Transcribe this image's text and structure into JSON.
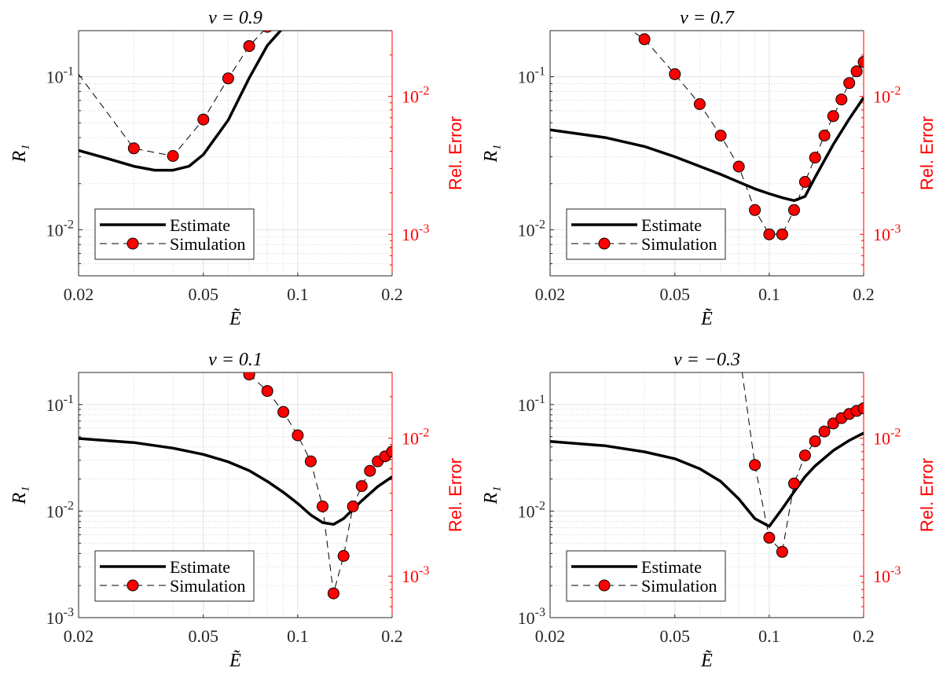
{
  "chart_data": [
    {
      "type": "line",
      "title": "ν = 0.9",
      "xlabel": "Ẽ",
      "ylabel": "R₁",
      "y2label": "Rel. Error",
      "xscale": "log",
      "yscale": "log",
      "y2scale": "log",
      "xlim": [
        0.02,
        0.2
      ],
      "ylim": [
        0.005,
        0.2
      ],
      "y2lim": [
        0.0005,
        0.03
      ],
      "xticks": [
        "0.02",
        "0.05",
        "0.1",
        "0.2"
      ],
      "yticks": [
        {
          "base": "10",
          "exp": "-2"
        },
        {
          "base": "10",
          "exp": "-1"
        }
      ],
      "y2ticks": [
        {
          "base": "10",
          "exp": "-3"
        },
        {
          "base": "10",
          "exp": "-2"
        }
      ],
      "grid": true,
      "legend": {
        "position": "bottom-left",
        "entries": [
          "Estimate",
          "Simulation"
        ]
      },
      "series": [
        {
          "name": "Estimate",
          "axis": "left",
          "x": [
            0.02,
            0.025,
            0.03,
            0.035,
            0.04,
            0.045,
            0.05,
            0.06,
            0.07,
            0.08,
            0.09
          ],
          "y": [
            0.033,
            0.029,
            0.026,
            0.0245,
            0.0245,
            0.026,
            0.031,
            0.052,
            0.098,
            0.16,
            0.21
          ]
        },
        {
          "name": "Simulation",
          "axis": "right",
          "x": [
            0.02,
            0.03,
            0.04,
            0.05,
            0.06,
            0.07,
            0.08
          ],
          "y": [
            0.0145,
            0.0042,
            0.0037,
            0.0068,
            0.0135,
            0.0232,
            0.032
          ]
        }
      ]
    },
    {
      "type": "line",
      "title": "ν = 0.7",
      "xlabel": "Ẽ",
      "ylabel": "R₁",
      "y2label": "Rel. Error",
      "xscale": "log",
      "yscale": "log",
      "y2scale": "log",
      "xlim": [
        0.02,
        0.2
      ],
      "ylim": [
        0.005,
        0.2
      ],
      "y2lim": [
        0.0005,
        0.03
      ],
      "xticks": [
        "0.02",
        "0.05",
        "0.1",
        "0.2"
      ],
      "yticks": [
        {
          "base": "10",
          "exp": "-2"
        },
        {
          "base": "10",
          "exp": "-1"
        }
      ],
      "y2ticks": [
        {
          "base": "10",
          "exp": "-3"
        },
        {
          "base": "10",
          "exp": "-2"
        }
      ],
      "grid": true,
      "legend": {
        "position": "bottom-left",
        "entries": [
          "Estimate",
          "Simulation"
        ]
      },
      "series": [
        {
          "name": "Estimate",
          "axis": "left",
          "x": [
            0.02,
            0.03,
            0.04,
            0.05,
            0.06,
            0.07,
            0.08,
            0.09,
            0.1,
            0.11,
            0.12,
            0.13,
            0.14,
            0.16,
            0.18,
            0.2
          ],
          "y": [
            0.045,
            0.04,
            0.035,
            0.03,
            0.026,
            0.023,
            0.0205,
            0.0185,
            0.0172,
            0.0162,
            0.0155,
            0.0165,
            0.022,
            0.036,
            0.053,
            0.073
          ]
        },
        {
          "name": "Simulation",
          "axis": "right",
          "x": [
            0.03,
            0.04,
            0.05,
            0.06,
            0.07,
            0.08,
            0.09,
            0.1,
            0.11,
            0.12,
            0.13,
            0.14,
            0.15,
            0.16,
            0.17,
            0.18,
            0.19,
            0.2
          ],
          "y": [
            0.04,
            0.026,
            0.0145,
            0.0088,
            0.0052,
            0.0031,
            0.0015,
            0.001,
            0.001,
            0.0015,
            0.0024,
            0.0036,
            0.0052,
            0.0072,
            0.0095,
            0.0125,
            0.0152,
            0.0178
          ]
        }
      ]
    },
    {
      "type": "line",
      "title": "ν = 0.1",
      "xlabel": "Ẽ",
      "ylabel": "R₁",
      "y2label": "Rel. Error",
      "xscale": "log",
      "yscale": "log",
      "y2scale": "log",
      "xlim": [
        0.02,
        0.2
      ],
      "ylim": [
        0.001,
        0.2
      ],
      "y2lim": [
        0.0005,
        0.03
      ],
      "xticks": [
        "0.02",
        "0.05",
        "0.1",
        "0.2"
      ],
      "yticks": [
        {
          "base": "10",
          "exp": "-3"
        },
        {
          "base": "10",
          "exp": "-2"
        },
        {
          "base": "10",
          "exp": "-1"
        }
      ],
      "y2ticks": [
        {
          "base": "10",
          "exp": "-3"
        },
        {
          "base": "10",
          "exp": "-2"
        }
      ],
      "grid": true,
      "legend": {
        "position": "bottom-left",
        "entries": [
          "Estimate",
          "Simulation"
        ]
      },
      "series": [
        {
          "name": "Estimate",
          "axis": "left",
          "x": [
            0.02,
            0.03,
            0.04,
            0.05,
            0.06,
            0.07,
            0.08,
            0.09,
            0.1,
            0.11,
            0.12,
            0.13,
            0.14,
            0.16,
            0.18,
            0.2
          ],
          "y": [
            0.048,
            0.044,
            0.039,
            0.034,
            0.029,
            0.024,
            0.019,
            0.015,
            0.0118,
            0.0092,
            0.0078,
            0.0075,
            0.0085,
            0.0125,
            0.017,
            0.021
          ]
        },
        {
          "name": "Simulation",
          "axis": "right",
          "x": [
            0.07,
            0.08,
            0.09,
            0.1,
            0.11,
            0.12,
            0.13,
            0.14,
            0.15,
            0.16,
            0.17,
            0.18,
            0.19,
            0.2
          ],
          "y": [
            0.029,
            0.022,
            0.0155,
            0.0105,
            0.0068,
            0.0032,
            0.00075,
            0.0014,
            0.0032,
            0.0045,
            0.0058,
            0.0068,
            0.0074,
            0.008
          ]
        }
      ]
    },
    {
      "type": "line",
      "title": "ν = −0.3",
      "xlabel": "Ẽ",
      "ylabel": "R₁",
      "y2label": "Rel. Error",
      "xscale": "log",
      "yscale": "log",
      "y2scale": "log",
      "xlim": [
        0.02,
        0.2
      ],
      "ylim": [
        0.001,
        0.2
      ],
      "y2lim": [
        0.0005,
        0.03
      ],
      "xticks": [
        "0.02",
        "0.05",
        "0.1",
        "0.2"
      ],
      "yticks": [
        {
          "base": "10",
          "exp": "-3"
        },
        {
          "base": "10",
          "exp": "-2"
        },
        {
          "base": "10",
          "exp": "-1"
        }
      ],
      "y2ticks": [
        {
          "base": "10",
          "exp": "-3"
        },
        {
          "base": "10",
          "exp": "-2"
        }
      ],
      "grid": true,
      "legend": {
        "position": "bottom-left",
        "entries": [
          "Estimate",
          "Simulation"
        ]
      },
      "series": [
        {
          "name": "Estimate",
          "axis": "left",
          "x": [
            0.02,
            0.03,
            0.04,
            0.05,
            0.06,
            0.07,
            0.08,
            0.09,
            0.1,
            0.11,
            0.12,
            0.13,
            0.14,
            0.16,
            0.18,
            0.2
          ],
          "y": [
            0.045,
            0.041,
            0.036,
            0.031,
            0.025,
            0.019,
            0.013,
            0.0085,
            0.0072,
            0.0105,
            0.0152,
            0.021,
            0.0265,
            0.037,
            0.046,
            0.054
          ]
        },
        {
          "name": "Simulation",
          "axis": "right",
          "x": [
            0.08,
            0.09,
            0.1,
            0.11,
            0.12,
            0.13,
            0.14,
            0.15,
            0.16,
            0.17,
            0.18,
            0.19,
            0.2
          ],
          "y": [
            0.045,
            0.0064,
            0.0019,
            0.0015,
            0.0047,
            0.0075,
            0.0095,
            0.0112,
            0.0128,
            0.014,
            0.015,
            0.0158,
            0.0165
          ]
        }
      ]
    }
  ]
}
